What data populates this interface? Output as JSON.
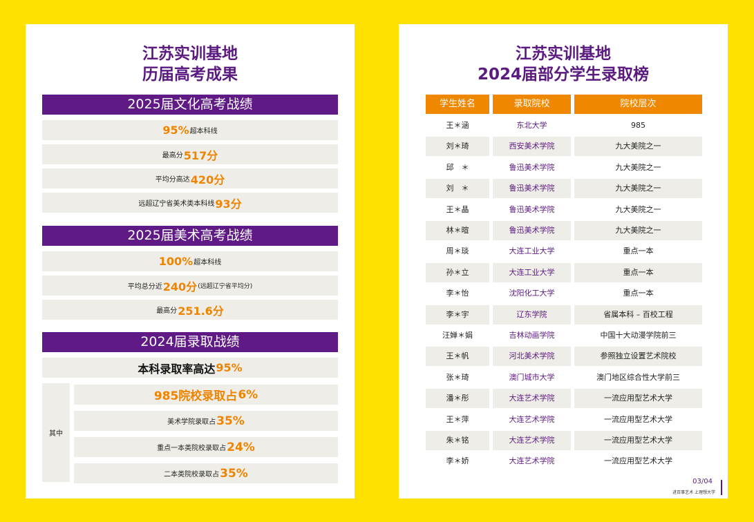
{
  "left": {
    "title": [
      "江苏实训基地",
      "历届高考成果"
    ],
    "sections": [
      {
        "heading": "2025届文化高考战绩",
        "rows": [
          [
            "95%",
            "超本科线"
          ],
          [
            "最高分",
            "517分"
          ],
          [
            "平均分高达",
            "420分"
          ],
          [
            "远超辽宁省美术类本科线",
            "93分"
          ]
        ]
      },
      {
        "heading": "2025届美术高考战绩",
        "rows": [
          [
            "100%",
            "超本科线"
          ],
          [
            "平均总分近",
            "240分",
            "(远超辽宁省平均分)"
          ],
          [
            "最高分",
            "251.6分"
          ]
        ]
      },
      {
        "heading": "2024届录取战绩",
        "summary": [
          "本科录取率高达",
          "95%"
        ],
        "label": "其中",
        "rows": [
          [
            "985院校录取占",
            "6%"
          ],
          [
            "美术学院录取占",
            "35%"
          ],
          [
            "重点一本类院校录取占",
            "24%"
          ],
          [
            "二本类院校录取占",
            "35%"
          ]
        ]
      }
    ]
  },
  "right": {
    "title": [
      "江苏实训基地",
      "2024届部分学生录取榜"
    ],
    "table": {
      "headers": [
        "学生姓名",
        "录取院校",
        "院校层次"
      ],
      "rows": [
        [
          "王＊涵",
          "东北大学",
          "985"
        ],
        [
          "刘＊琦",
          "西安美术学院",
          "九大美院之一"
        ],
        [
          "邱　＊",
          "鲁迅美术学院",
          "九大美院之一"
        ],
        [
          "刘　＊",
          "鲁迅美术学院",
          "九大美院之一"
        ],
        [
          "王＊晶",
          "鲁迅美术学院",
          "九大美院之一"
        ],
        [
          "林＊暄",
          "鲁迅美术学院",
          "九大美院之一"
        ],
        [
          "周＊琰",
          "大连工业大学",
          "重点一本"
        ],
        [
          "孙＊立",
          "大连工业大学",
          "重点一本"
        ],
        [
          "李＊怡",
          "沈阳化工大学",
          "重点一本"
        ],
        [
          "李＊宇",
          "辽东学院",
          "省属本科 – 百校工程"
        ],
        [
          "汪婵＊娟",
          "吉林动画学院",
          "中国十大动漫学院前三"
        ],
        [
          "王＊帆",
          "河北美术学院",
          "参照独立设置艺术院校"
        ],
        [
          "张＊琦",
          "澳门城市大学",
          "澳门地区综合性大学前三"
        ],
        [
          "潘＊彤",
          "大连艺术学院",
          "一流应用型艺术大学"
        ],
        [
          "王＊萍",
          "大连艺术学院",
          "一流应用型艺术大学"
        ],
        [
          "朱＊铭",
          "大连艺术学院",
          "一流应用型艺术大学"
        ],
        [
          "李＊娇",
          "大连艺术学院",
          "一流应用型艺术大学"
        ]
      ]
    },
    "footer": {
      "page": "03/04",
      "slogan": "进百事艺术 上理想大学"
    }
  }
}
